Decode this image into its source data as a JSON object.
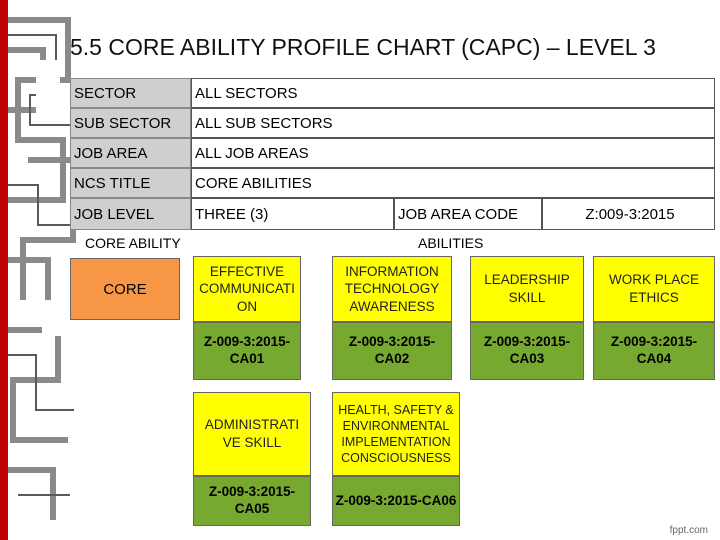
{
  "title": "5.5 CORE ABILITY PROFILE CHART (CAPC) – LEVEL 3",
  "info": {
    "sector_label": "SECTOR",
    "sector_value": "ALL SECTORS",
    "subsector_label": "SUB SECTOR",
    "subsector_value": "ALL SUB SECTORS",
    "jobarea_label": "JOB AREA",
    "jobarea_value": "ALL JOB AREAS",
    "ncs_label": "NCS TITLE",
    "ncs_value": "CORE ABILITIES",
    "joblevel_label": "JOB LEVEL",
    "joblevel_value": "THREE (3)",
    "jobareacode_label": "JOB AREA CODE",
    "jobareacode_value": "Z:009-3:2015"
  },
  "headers": {
    "core_ability": "CORE ABILITY",
    "abilities": "ABILITIES"
  },
  "core_label": "CORE",
  "abilities": [
    {
      "name": "EFFECTIVE COMMUNICATI ON",
      "code": "Z-009-3:2015-CA01"
    },
    {
      "name": "INFORMATION TECHNOLOGY AWARENESS",
      "code": "Z-009-3:2015-CA02"
    },
    {
      "name": "LEADERSHIP SKILL",
      "code": "Z-009-3:2015-CA03"
    },
    {
      "name": "WORK PLACE ETHICS",
      "code": "Z-009-3:2015-CA04"
    },
    {
      "name": "ADMINISTRATI VE SKILL",
      "code": "Z-009-3:2015-CA05"
    },
    {
      "name": "HEALTH, SAFETY & ENVIRONMENTAL IMPLEMENTATION CONSCIOUSNESS",
      "code": "Z-009-3:2015-CA06"
    }
  ],
  "footer": "fppt.com"
}
